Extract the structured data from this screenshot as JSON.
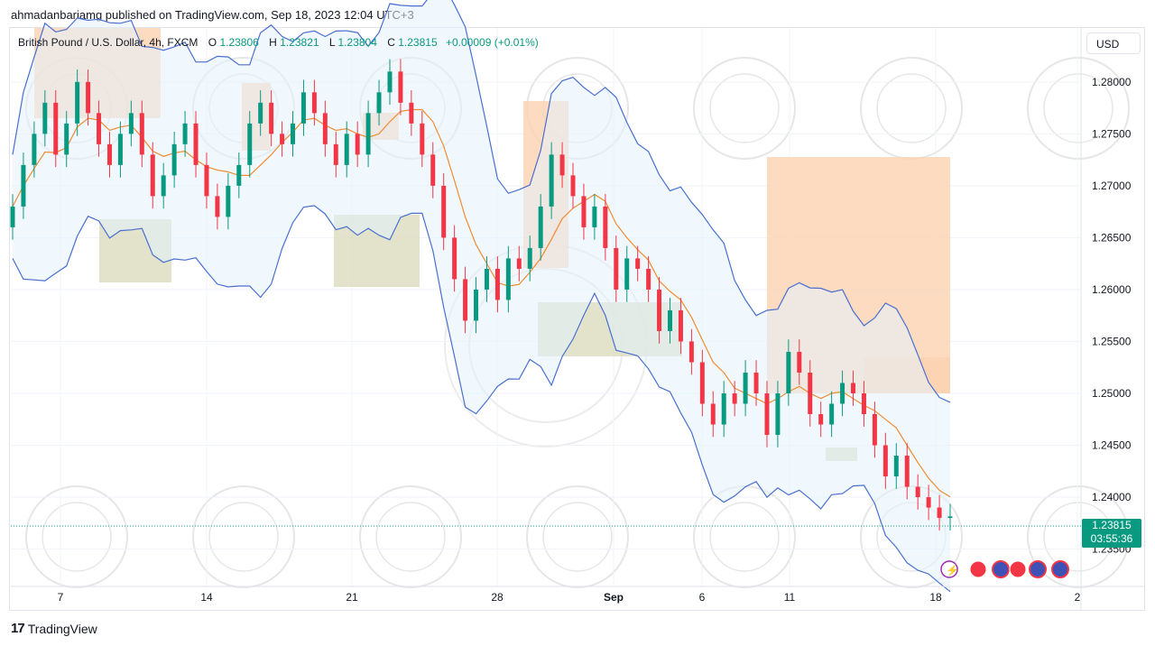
{
  "header": {
    "published": "ahmadanbariamg published on TradingView.com, Sep 18, 2023 12:04 UTC+3"
  },
  "legend": {
    "symbol": "British Pound / U.S. Dollar, 4h, FXCM",
    "o_label": "O",
    "o_value": "1.23806",
    "h_label": "H",
    "h_value": "1.23821",
    "l_label": "L",
    "l_value": "1.23804",
    "c_label": "C",
    "c_value": "1.23815",
    "change": "+0.00009 (+0.01%)"
  },
  "currency_button": "USD",
  "last_price": {
    "value": "1.23815",
    "countdown": "03:55:36"
  },
  "footer": {
    "brand": "TradingView",
    "logo": "17"
  },
  "colors": {
    "up": "#089981",
    "down": "#f23645",
    "band": "#4a6fd0",
    "ma": "#f08c33",
    "zone_supply": "#fbd2b0",
    "zone_demand": "#dcdcbf"
  },
  "chart_data": {
    "type": "candlestick",
    "title": "",
    "ylim": [
      1.2314,
      1.2852
    ],
    "y_ticks": [
      "1.28000",
      "1.27500",
      "1.27000",
      "1.26500",
      "1.26000",
      "1.25500",
      "1.25000",
      "1.24500",
      "1.24000",
      "1.23500"
    ],
    "x_ticks": [
      "7",
      "14",
      "21",
      "28",
      "Sep",
      "6",
      "11",
      "18",
      "2"
    ],
    "indicators": [
      "Bollinger Bands",
      "Moving Average"
    ],
    "close_path": [
      1.268,
      1.272,
      1.275,
      1.278,
      1.273,
      1.276,
      1.28,
      1.277,
      1.274,
      1.272,
      1.275,
      1.277,
      1.273,
      1.269,
      1.271,
      1.274,
      1.276,
      1.272,
      1.269,
      1.267,
      1.27,
      1.272,
      1.276,
      1.278,
      1.275,
      1.274,
      1.276,
      1.279,
      1.277,
      1.274,
      1.272,
      1.275,
      1.273,
      1.277,
      1.279,
      1.281,
      1.278,
      1.276,
      1.273,
      1.27,
      1.265,
      1.261,
      1.257,
      1.26,
      1.262,
      1.259,
      1.263,
      1.262,
      1.264,
      1.268,
      1.273,
      1.271,
      1.269,
      1.266,
      1.268,
      1.264,
      1.26,
      1.263,
      1.262,
      1.26,
      1.256,
      1.258,
      1.255,
      1.253,
      1.249,
      1.247,
      1.25,
      1.249,
      1.252,
      1.25,
      1.246,
      1.25,
      1.254,
      1.252,
      1.248,
      1.247,
      1.249,
      1.251,
      1.25,
      1.248,
      1.245,
      1.242,
      1.244,
      1.241,
      1.24,
      1.239,
      1.238,
      1.23815
    ]
  }
}
